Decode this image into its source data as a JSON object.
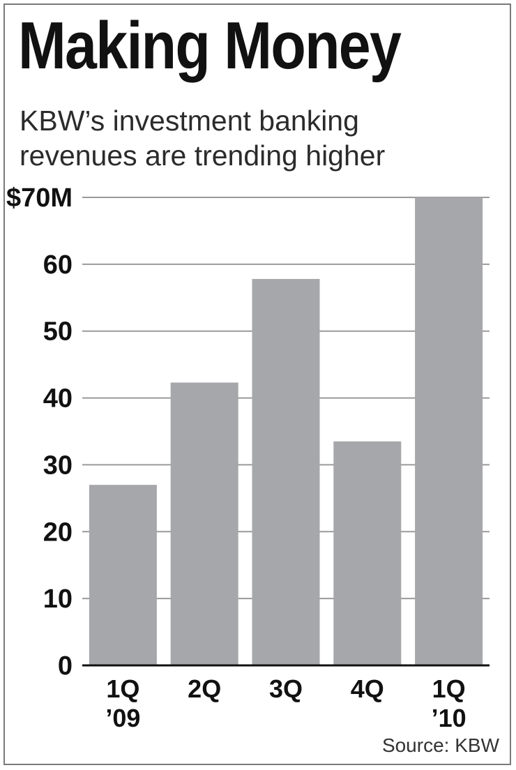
{
  "chart_data": {
    "type": "bar",
    "title": "Making Money",
    "subtitle_lines": [
      "KBW’s investment banking",
      "revenues are trending higher"
    ],
    "categories": [
      [
        "1Q",
        "’09"
      ],
      [
        "2Q"
      ],
      [
        "3Q"
      ],
      [
        "4Q"
      ],
      [
        "1Q",
        "’10"
      ]
    ],
    "values": [
      27,
      42.3,
      57.8,
      33.5,
      70
    ],
    "ylim": [
      0,
      70
    ],
    "yticks": [
      0,
      10,
      20,
      30,
      40,
      50,
      60,
      70
    ],
    "ytick_labels": [
      "0",
      "10",
      "20",
      "30",
      "40",
      "50",
      "60",
      "$70M"
    ],
    "grid": true,
    "source": "Source: KBW"
  },
  "colors": {
    "bar": "#a6a7ab",
    "grid": "#9a9a9a",
    "axis": "#111111"
  }
}
